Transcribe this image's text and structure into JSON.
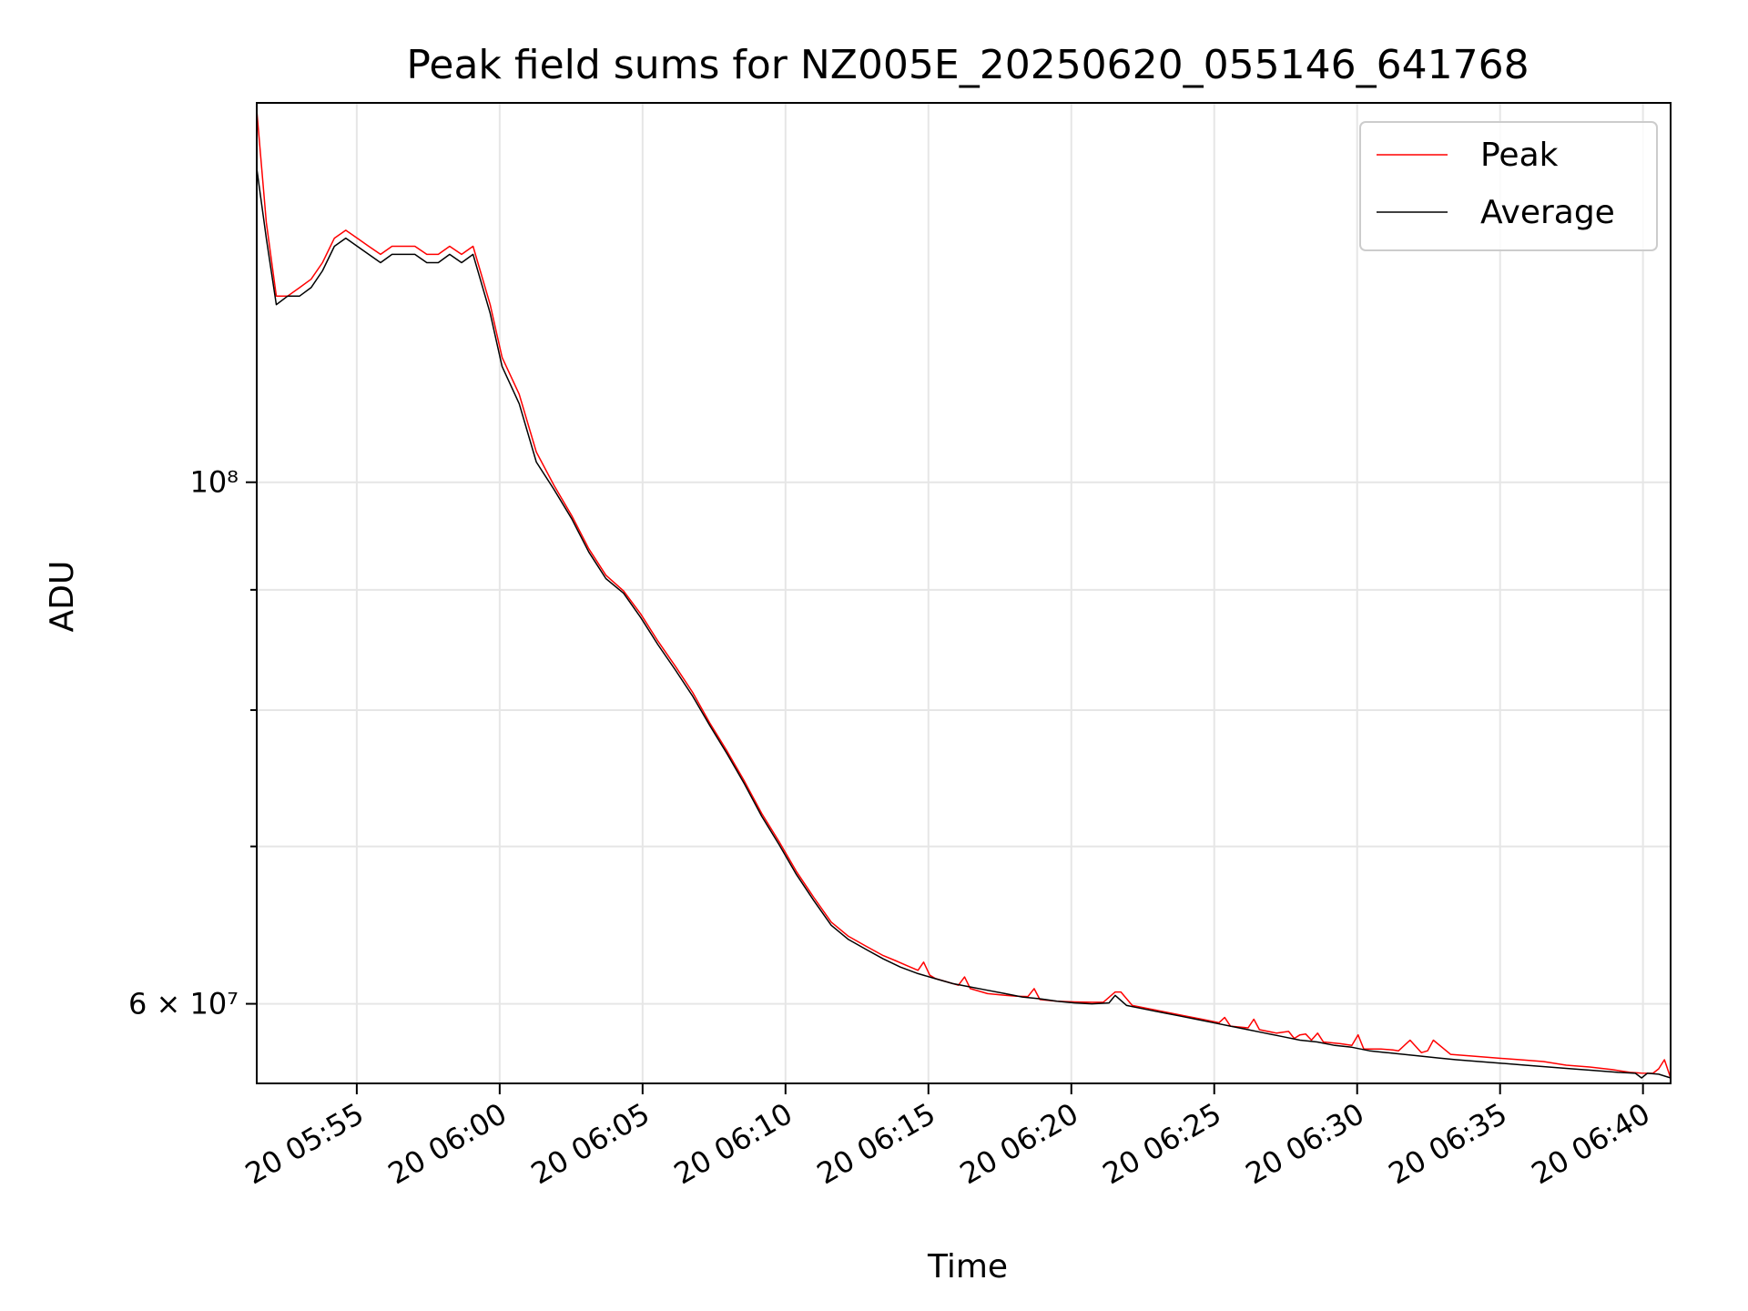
{
  "chart_data": {
    "type": "line",
    "title": "Peak field sums for NZ005E_20250620_055146_641768",
    "xlabel": "Time",
    "ylabel": "ADU",
    "x_scale": "time",
    "y_scale": "log",
    "xlim": [
      "2025-06-20 05:51:30",
      "2025-06-20 06:40:58"
    ],
    "ylim": [
      55500000,
      145000000
    ],
    "x_ticks": [
      {
        "value": "2025-06-20 05:55:00",
        "label": "20 05:55"
      },
      {
        "value": "2025-06-20 06:00:00",
        "label": "20 06:00"
      },
      {
        "value": "2025-06-20 06:05:00",
        "label": "20 06:05"
      },
      {
        "value": "2025-06-20 06:10:00",
        "label": "20 06:10"
      },
      {
        "value": "2025-06-20 06:15:00",
        "label": "20 06:15"
      },
      {
        "value": "2025-06-20 06:20:00",
        "label": "20 06:20"
      },
      {
        "value": "2025-06-20 06:25:00",
        "label": "20 06:25"
      },
      {
        "value": "2025-06-20 06:30:00",
        "label": "20 06:30"
      },
      {
        "value": "2025-06-20 06:35:00",
        "label": "20 06:35"
      },
      {
        "value": "2025-06-20 06:40:00",
        "label": "20 06:40"
      }
    ],
    "y_major_ticks": [
      {
        "value": 60000000,
        "label": "6 × 10⁷"
      },
      {
        "value": 100000000,
        "label": "10⁸"
      }
    ],
    "y_minor_ticks": [
      70000000,
      80000000,
      90000000
    ],
    "grid": true,
    "legend_position": "upper right",
    "series": [
      {
        "name": "Peak",
        "color": "#ff0000",
        "x": [
          "2025-06-20 05:51:30",
          "2025-06-20 05:51:50",
          "2025-06-20 05:52:11",
          "2025-06-20 05:52:35",
          "2025-06-20 05:53:00",
          "2025-06-20 05:53:24",
          "2025-06-20 05:53:48",
          "2025-06-20 05:54:13",
          "2025-06-20 05:54:37",
          "2025-06-20 05:55:01",
          "2025-06-20 05:55:25",
          "2025-06-20 05:55:50",
          "2025-06-20 05:56:14",
          "2025-06-20 05:56:38",
          "2025-06-20 05:57:02",
          "2025-06-20 05:57:27",
          "2025-06-20 05:57:51",
          "2025-06-20 05:58:15",
          "2025-06-20 05:58:40",
          "2025-06-20 05:59:04",
          "2025-06-20 05:59:40",
          "2025-06-20 06:00:05",
          "2025-06-20 06:00:41",
          "2025-06-20 06:01:17",
          "2025-06-20 06:01:54",
          "2025-06-20 06:02:31",
          "2025-06-20 06:03:07",
          "2025-06-20 06:03:43",
          "2025-06-20 06:04:20",
          "2025-06-20 06:04:56",
          "2025-06-20 06:05:32",
          "2025-06-20 06:06:09",
          "2025-06-20 06:06:45",
          "2025-06-20 06:07:21",
          "2025-06-20 06:07:58",
          "2025-06-20 06:08:34",
          "2025-06-20 06:09:10",
          "2025-06-20 06:09:47",
          "2025-06-20 06:10:23",
          "2025-06-20 06:10:59",
          "2025-06-20 06:11:36",
          "2025-06-20 06:12:12",
          "2025-06-20 06:12:48",
          "2025-06-20 06:13:25",
          "2025-06-20 06:13:50",
          "2025-06-20 06:14:14",
          "2025-06-20 06:14:38",
          "2025-06-20 06:14:50",
          "2025-06-20 06:15:03",
          "2025-06-20 06:15:15",
          "2025-06-20 06:15:39",
          "2025-06-20 06:16:03",
          "2025-06-20 06:16:16",
          "2025-06-20 06:16:28",
          "2025-06-20 06:17:04",
          "2025-06-20 06:17:41",
          "2025-06-20 06:18:05",
          "2025-06-20 06:18:29",
          "2025-06-20 06:18:42",
          "2025-06-20 06:18:54",
          "2025-06-20 06:19:30",
          "2025-06-20 06:20:07",
          "2025-06-20 06:20:43",
          "2025-06-20 06:21:07",
          "2025-06-20 06:21:32",
          "2025-06-20 06:21:44",
          "2025-06-20 06:22:08",
          "2025-06-20 06:22:45",
          "2025-06-20 06:23:21",
          "2025-06-20 06:23:57",
          "2025-06-20 06:24:34",
          "2025-06-20 06:25:10",
          "2025-06-20 06:25:22",
          "2025-06-20 06:25:34",
          "2025-06-20 06:26:11",
          "2025-06-20 06:26:23",
          "2025-06-20 06:26:35",
          "2025-06-20 06:27:11",
          "2025-06-20 06:27:36",
          "2025-06-20 06:27:48",
          "2025-06-20 06:28:00",
          "2025-06-20 06:28:12",
          "2025-06-20 06:28:24",
          "2025-06-20 06:28:37",
          "2025-06-20 06:28:49",
          "2025-06-20 06:29:25",
          "2025-06-20 06:29:49",
          "2025-06-20 06:30:02",
          "2025-06-20 06:30:14",
          "2025-06-20 06:30:50",
          "2025-06-20 06:31:15",
          "2025-06-20 06:31:27",
          "2025-06-20 06:31:51",
          "2025-06-20 06:32:15",
          "2025-06-20 06:32:28",
          "2025-06-20 06:32:40",
          "2025-06-20 06:33:16",
          "2025-06-20 06:34:05",
          "2025-06-20 06:34:53",
          "2025-06-20 06:35:42",
          "2025-06-20 06:36:31",
          "2025-06-20 06:37:19",
          "2025-06-20 06:38:08",
          "2025-06-20 06:38:56",
          "2025-06-20 06:39:33",
          "2025-06-20 06:39:57",
          "2025-06-20 06:40:21",
          "2025-06-20 06:40:33",
          "2025-06-20 06:40:45",
          "2025-06-20 06:40:58"
        ],
        "values": [
          144000000,
          129000000,
          120000000,
          120000000,
          121000000,
          122000000,
          124000000,
          127000000,
          128000000,
          127000000,
          126000000,
          125000000,
          126000000,
          126000000,
          126000000,
          125000000,
          125000000,
          126000000,
          125000000,
          126000000,
          119000000,
          113000000,
          109000000,
          103000000,
          99700000,
          96800000,
          93700000,
          91300000,
          89900000,
          87900000,
          85600000,
          83500000,
          81400000,
          79000000,
          76800000,
          74600000,
          72300000,
          70300000,
          68300000,
          66600000,
          65000000,
          64100000,
          63500000,
          62900000,
          62600000,
          62300000,
          62000000,
          62500000,
          61700000,
          61500000,
          61300000,
          61100000,
          61600000,
          60900000,
          60600000,
          60500000,
          60450000,
          60430000,
          60900000,
          60250000,
          60150000,
          60110000,
          60090000,
          60090000,
          60700000,
          60700000,
          59900000,
          59700000,
          59500000,
          59300000,
          59100000,
          58900000,
          59200000,
          58700000,
          58600000,
          59100000,
          58500000,
          58300000,
          58400000,
          58000000,
          58200000,
          58250000,
          57900000,
          58300000,
          57800000,
          57700000,
          57600000,
          58200000,
          57400000,
          57400000,
          57350000,
          57300000,
          57900000,
          57200000,
          57300000,
          57900000,
          57100000,
          57000000,
          56900000,
          56800000,
          56700000,
          56500000,
          56400000,
          56250000,
          56100000,
          56060000,
          56050000,
          56300000,
          56800000,
          55800000
        ]
      },
      {
        "name": "Average",
        "color": "#000000",
        "x": [
          "2025-06-20 05:51:30",
          "2025-06-20 05:51:50",
          "2025-06-20 05:52:11",
          "2025-06-20 05:52:35",
          "2025-06-20 05:53:00",
          "2025-06-20 05:53:24",
          "2025-06-20 05:53:48",
          "2025-06-20 05:54:13",
          "2025-06-20 05:54:37",
          "2025-06-20 05:55:01",
          "2025-06-20 05:55:25",
          "2025-06-20 05:55:50",
          "2025-06-20 05:56:14",
          "2025-06-20 05:56:38",
          "2025-06-20 05:57:02",
          "2025-06-20 05:57:27",
          "2025-06-20 05:57:51",
          "2025-06-20 05:58:15",
          "2025-06-20 05:58:40",
          "2025-06-20 05:59:04",
          "2025-06-20 05:59:40",
          "2025-06-20 06:00:05",
          "2025-06-20 06:00:41",
          "2025-06-20 06:01:17",
          "2025-06-20 06:01:54",
          "2025-06-20 06:02:31",
          "2025-06-20 06:03:07",
          "2025-06-20 06:03:43",
          "2025-06-20 06:04:20",
          "2025-06-20 06:04:56",
          "2025-06-20 06:05:32",
          "2025-06-20 06:06:09",
          "2025-06-20 06:06:45",
          "2025-06-20 06:07:21",
          "2025-06-20 06:07:58",
          "2025-06-20 06:08:34",
          "2025-06-20 06:09:10",
          "2025-06-20 06:09:47",
          "2025-06-20 06:10:23",
          "2025-06-20 06:10:59",
          "2025-06-20 06:11:36",
          "2025-06-20 06:12:12",
          "2025-06-20 06:12:48",
          "2025-06-20 06:13:25",
          "2025-06-20 06:14:01",
          "2025-06-20 06:14:38",
          "2025-06-20 06:15:14",
          "2025-06-20 06:15:51",
          "2025-06-20 06:16:27",
          "2025-06-20 06:17:04",
          "2025-06-20 06:17:41",
          "2025-06-20 06:18:17",
          "2025-06-20 06:18:53",
          "2025-06-20 06:19:30",
          "2025-06-20 06:20:07",
          "2025-06-20 06:20:43",
          "2025-06-20 06:21:19",
          "2025-06-20 06:21:32",
          "2025-06-20 06:21:56",
          "2025-06-20 06:22:32",
          "2025-06-20 06:23:09",
          "2025-06-20 06:23:45",
          "2025-06-20 06:24:22",
          "2025-06-20 06:24:58",
          "2025-06-20 06:25:34",
          "2025-06-20 06:26:11",
          "2025-06-20 06:26:47",
          "2025-06-20 06:27:24",
          "2025-06-20 06:28:00",
          "2025-06-20 06:28:36",
          "2025-06-20 06:29:13",
          "2025-06-20 06:29:49",
          "2025-06-20 06:30:26",
          "2025-06-20 06:31:02",
          "2025-06-20 06:31:38",
          "2025-06-20 06:32:15",
          "2025-06-20 06:32:51",
          "2025-06-20 06:33:28",
          "2025-06-20 06:34:16",
          "2025-06-20 06:35:05",
          "2025-06-20 06:35:53",
          "2025-06-20 06:36:42",
          "2025-06-20 06:37:31",
          "2025-06-20 06:38:19",
          "2025-06-20 06:39:08",
          "2025-06-20 06:39:44",
          "2025-06-20 06:39:57",
          "2025-06-20 06:40:09",
          "2025-06-20 06:40:33",
          "2025-06-20 06:40:58"
        ],
        "values": [
          136000000,
          127000000,
          119000000,
          120000000,
          120000000,
          121000000,
          123000000,
          126000000,
          127000000,
          126000000,
          125000000,
          124000000,
          125000000,
          125000000,
          125000000,
          124000000,
          124000000,
          125000000,
          124000000,
          125000000,
          118000000,
          112000000,
          108000000,
          102000000,
          99300000,
          96500000,
          93400000,
          91000000,
          89700000,
          87600000,
          85300000,
          83200000,
          81100000,
          78800000,
          76600000,
          74400000,
          72100000,
          70100000,
          68100000,
          66400000,
          64800000,
          63900000,
          63300000,
          62700000,
          62200000,
          61800000,
          61500000,
          61200000,
          61000000,
          60800000,
          60600000,
          60400000,
          60300000,
          60150000,
          60050000,
          60000000,
          60050000,
          60500000,
          59900000,
          59700000,
          59500000,
          59300000,
          59100000,
          58900000,
          58700000,
          58500000,
          58300000,
          58100000,
          57900000,
          57800000,
          57600000,
          57500000,
          57300000,
          57200000,
          57100000,
          57000000,
          56900000,
          56800000,
          56700000,
          56600000,
          56500000,
          56400000,
          56300000,
          56200000,
          56100000,
          56050000,
          55800000,
          56050000,
          56000000,
          55800000
        ]
      }
    ]
  }
}
